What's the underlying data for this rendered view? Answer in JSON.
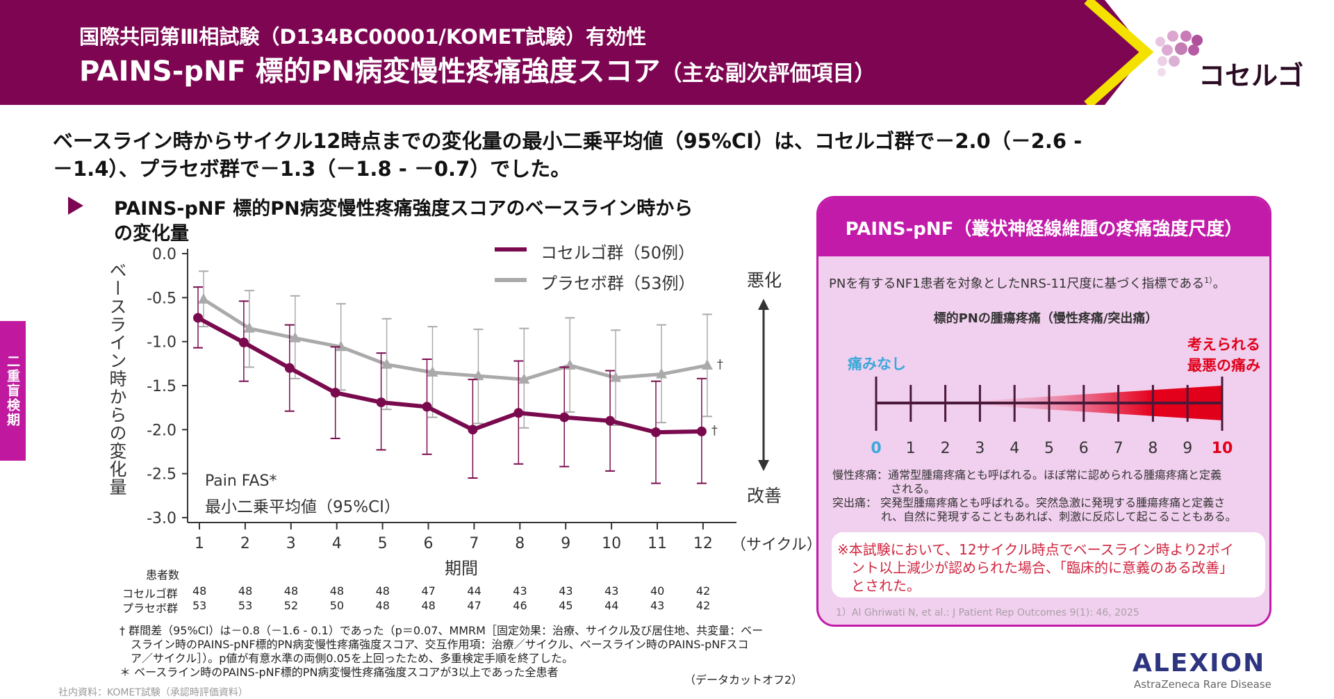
{
  "header": {
    "subtitle": "国際共同第Ⅲ相試験（D134BC00001/KOMET試験）有効性",
    "title": "PAINS-pNF 標的PN病変慢性疼痛強度スコア",
    "title_suffix": "（主な副次評価項目）",
    "logo_text": "コセルゴ",
    "brand_color": "#7d0552",
    "chevron_color": "#f5e100"
  },
  "headline": {
    "line1": "ベースライン時からサイクル12時点までの変化量の最小二乗平均値（95%CI）は、コセルゴ群で－2.0（－2.6 -",
    "line2": "－1.4）、プラセボ群で－1.3（－1.8 - －0.7）でした。"
  },
  "side_tab": "二重盲検期",
  "section": {
    "line1": "PAINS-pNF 標的PN病変慢性疼痛強度スコアのベースライン時から",
    "line2": "の変化量"
  },
  "chart_data": {
    "type": "line",
    "title": "PAINS-pNF 標的PN病変慢性疼痛強度スコアのベースライン時からの変化量",
    "xlabel": "期間",
    "xunit": "（サイクル）",
    "ylabel": "ベースライン時からの変化量",
    "ylim": [
      -3.0,
      0.0
    ],
    "yticks": [
      "0.0",
      "-0.5",
      "-1.0",
      "-1.5",
      "-2.0",
      "-2.5",
      "-3.0"
    ],
    "yticks_values": [
      0,
      -0.5,
      -1.0,
      -1.5,
      -2.0,
      -2.5,
      -3.0
    ],
    "x": [
      1,
      2,
      3,
      4,
      5,
      6,
      7,
      8,
      9,
      10,
      11,
      12
    ],
    "grid": false,
    "legend_position": "top-right",
    "series": [
      {
        "name": "コセルゴ群（50例）",
        "color": "#7a0a4e",
        "marker": "circle",
        "values": [
          -0.73,
          -1.01,
          -1.3,
          -1.58,
          -1.69,
          -1.74,
          -2.0,
          -1.81,
          -1.86,
          -1.9,
          -2.03,
          -2.02
        ],
        "ci_low": [
          -1.07,
          -1.45,
          -1.79,
          -2.1,
          -2.23,
          -2.28,
          -2.55,
          -2.39,
          -2.42,
          -2.47,
          -2.61,
          -2.61
        ],
        "ci_high": [
          -0.38,
          -0.54,
          -0.81,
          -1.06,
          -1.13,
          -1.2,
          -1.43,
          -1.22,
          -1.29,
          -1.33,
          -1.45,
          -1.42
        ],
        "n": [
          48,
          48,
          48,
          48,
          48,
          47,
          44,
          43,
          43,
          43,
          40,
          42
        ]
      },
      {
        "name": "プラセボ群（53例）",
        "color": "#aaaaaa",
        "marker": "triangle",
        "values": [
          -0.52,
          -0.85,
          -0.96,
          -1.06,
          -1.26,
          -1.35,
          -1.39,
          -1.43,
          -1.27,
          -1.41,
          -1.37,
          -1.27
        ],
        "ci_low": [
          -0.83,
          -1.29,
          -1.42,
          -1.55,
          -1.77,
          -1.86,
          -1.93,
          -1.98,
          -1.8,
          -1.95,
          -1.92,
          -1.85
        ],
        "ci_high": [
          -0.2,
          -0.42,
          -0.48,
          -0.57,
          -0.74,
          -0.83,
          -0.86,
          -0.85,
          -0.73,
          -0.87,
          -0.81,
          -0.69
        ],
        "n": [
          53,
          53,
          52,
          50,
          48,
          48,
          47,
          46,
          45,
          44,
          43,
          42
        ]
      }
    ],
    "annotations": {
      "dagger": "†",
      "worse": "悪化",
      "better": "改善",
      "analysis_set": "Pain FAS*",
      "stat": "最小二乗平均値（95%CI）"
    },
    "n_table": {
      "title": "患者数",
      "row_labels": [
        "コセルゴ群",
        "プラセボ群"
      ]
    }
  },
  "footnotes": [
    "† 群間差（95%CI）は－0.8（－1.6 - 0.1）であった（p＝0.07、MMRM［固定効果：治療、サイクル及び居住地、共変量：ベー",
    "スライン時のPAINS-pNF標的PN病変慢性疼痛強度スコア、交互作用項：治療／サイクル、ベースライン時のPAINS-pNFスコ",
    "ア／サイクル］）。p値が有意水準の両側0.05を上回ったため、多重検定手順を終了した。",
    "＊ ベースライン時のPAINS-pNF標的PN病変慢性疼痛強度スコアが3以上であった全患者"
  ],
  "data_cutoff": "（データカットオフ2）",
  "source": "社内資料：KOMET試験（承認時評価資料）",
  "panel": {
    "title": "PAINS-pNF（叢状神経線維腫の疼痛強度尺度）",
    "intro": "PNを有するNF1患者を対象としたNRS-11尺度に基づく指標である",
    "intro_ref": "1）",
    "intro_end": "。",
    "scale_title": "標的PNの腫瘍疼痛（慢性疼痛/突出痛）",
    "no_pain": "痛みなし",
    "worst_pain_1": "考えられる",
    "worst_pain_2": "最悪の痛み",
    "scale_numbers": [
      "0",
      "1",
      "2",
      "3",
      "4",
      "5",
      "6",
      "7",
      "8",
      "9",
      "10"
    ],
    "no_pain_color": "#3aa8d8",
    "worst_color": "#e0001a",
    "def1_a": "慢性疼痛：通常型腫瘍疼痛とも呼ばれる。ほぼ常に認められる腫瘍疼痛と定義",
    "def1_b": "される。",
    "def2_a": "突出痛：  突発型腫瘍疼痛とも呼ばれる。突然急激に発現する腫瘍疼痛と定義さ",
    "def2_b": "れ、自然に発現することもあれば、刺激に反応して起こることもある。",
    "note1": "※本試験において、12サイクル時点でベースライン時より2ポイ",
    "note2": "ント以上減少が認められた場合、「臨床的に意義のある改善」",
    "note3": "とされた。",
    "reference": "1）Al Ghriwati N, et al.: J Patient Rep Outcomes 9(1): 46, 2025"
  },
  "footer_logo": {
    "name": "ALEXION",
    "tagline": "AstraZeneca Rare Disease"
  }
}
